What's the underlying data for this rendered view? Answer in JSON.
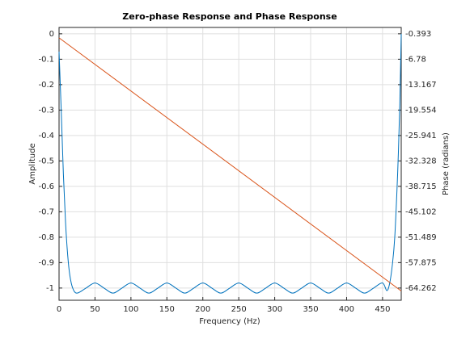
{
  "chart_data": {
    "type": "line",
    "title": "Zero-phase Response and Phase Response",
    "xlabel": "Frequency (Hz)",
    "ylabel": "Amplitude",
    "y2label": "Phase (radians)",
    "xlim": [
      0,
      476
    ],
    "xticks": [
      0,
      50,
      100,
      150,
      200,
      250,
      300,
      350,
      400,
      450
    ],
    "ylim": [
      -1.048,
      0.025
    ],
    "yticks": [
      0,
      -0.1,
      -0.2,
      -0.3,
      -0.4,
      -0.5,
      -0.6,
      -0.7,
      -0.8,
      -0.9,
      -1
    ],
    "y2lim": [
      -67.33,
      1.204
    ],
    "y2ticks": [
      -0.393,
      -6.78,
      -13.167,
      -19.554,
      -25.941,
      -32.328,
      -38.715,
      -45.102,
      -51.489,
      -57.875,
      -64.262
    ],
    "grid": true,
    "series": [
      {
        "color": "#0072bd",
        "x": [
          0,
          3,
          6,
          9,
          12,
          15,
          19,
          25,
          37.5,
          50,
          62.5,
          75,
          87.5,
          100,
          112.5,
          125,
          137.5,
          150,
          162.5,
          175,
          187.5,
          200,
          212.5,
          225,
          237.5,
          250,
          262.5,
          275,
          287.5,
          300,
          312.5,
          325,
          337.5,
          350,
          362.5,
          375,
          387.5,
          400,
          412.5,
          425,
          437.5,
          450,
          456,
          460,
          464,
          467,
          470,
          472,
          474,
          476
        ],
        "values": [
          -0.07,
          -0.3,
          -0.55,
          -0.74,
          -0.87,
          -0.95,
          -1.0,
          -1.02,
          -1,
          -0.98,
          -1,
          -1.02,
          -1,
          -0.98,
          -1,
          -1.02,
          -1,
          -0.98,
          -1,
          -1.02,
          -1,
          -0.98,
          -1,
          -1.02,
          -1,
          -0.98,
          -1,
          -1.02,
          -1,
          -0.98,
          -1,
          -1.02,
          -1,
          -0.98,
          -1,
          -1.02,
          -1,
          -0.98,
          -1,
          -1.02,
          -1,
          -0.98,
          -1.01,
          -0.98,
          -0.9,
          -0.8,
          -0.62,
          -0.47,
          -0.28,
          0
        ]
      },
      {
        "color": "#d95319",
        "axis": "y2",
        "x": [
          0,
          476
        ],
        "values": [
          -1.4,
          -65.0
        ]
      }
    ]
  }
}
